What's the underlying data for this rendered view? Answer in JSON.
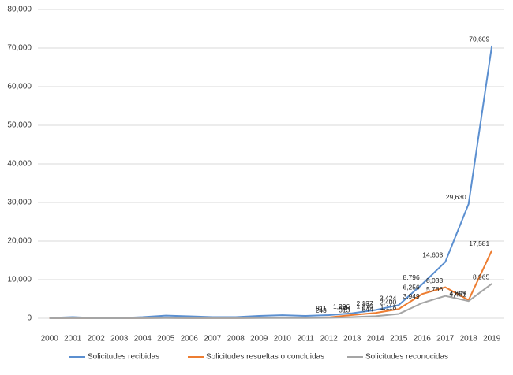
{
  "chart_data": {
    "type": "line",
    "categories": [
      "2000",
      "2001",
      "2002",
      "2003",
      "2004",
      "2005",
      "2006",
      "2007",
      "2008",
      "2009",
      "2010",
      "2011",
      "2012",
      "2013",
      "2014",
      "2015",
      "2016",
      "2017",
      "2018",
      "2019"
    ],
    "ylim": [
      0,
      80000
    ],
    "yticks": [
      {
        "value": 0,
        "label": "0"
      },
      {
        "value": 10000,
        "label": "10,000"
      },
      {
        "value": 20000,
        "label": "20,000"
      },
      {
        "value": 30000,
        "label": "30,000"
      },
      {
        "value": 40000,
        "label": "40,000"
      },
      {
        "value": 50000,
        "label": "50,000"
      },
      {
        "value": 60000,
        "label": "60,000"
      },
      {
        "value": 70000,
        "label": "70,000"
      },
      {
        "value": 80000,
        "label": "80,000"
      }
    ],
    "grid": true,
    "series": [
      {
        "name": "Solicitudes recibidas",
        "color": "#5b8fd0",
        "values": [
          100,
          300,
          50,
          50,
          300,
          700,
          500,
          300,
          300,
          600,
          800,
          600,
          811,
          1296,
          2137,
          3424,
          8796,
          14603,
          29630,
          70609
        ],
        "value_labels": [
          null,
          null,
          null,
          null,
          null,
          null,
          null,
          null,
          null,
          null,
          null,
          null,
          "811",
          "1,296",
          "2,137",
          "3,424",
          "8,796",
          "14,603",
          "29,630",
          "70,609"
        ]
      },
      {
        "name": "Solicitudes resueltas o concluidas",
        "color": "#ed7d31",
        "values": [
          0,
          50,
          0,
          0,
          50,
          100,
          50,
          50,
          50,
          100,
          100,
          100,
          243,
          846,
          1370,
          2400,
          6256,
          8033,
          4699,
          17581
        ],
        "value_labels": [
          null,
          null,
          null,
          null,
          null,
          null,
          null,
          null,
          null,
          null,
          null,
          null,
          "243",
          "846",
          "1,370",
          "2,400",
          "6,256",
          "8,033",
          "4,699",
          "17,581"
        ]
      },
      {
        "name": "Solicitudes reconocidas",
        "color": "#a5a5a5",
        "values": [
          0,
          30,
          0,
          0,
          30,
          50,
          30,
          30,
          30,
          50,
          50,
          50,
          100,
          313,
          544,
          1118,
          3949,
          5786,
          4451,
          8965
        ],
        "value_labels": [
          null,
          null,
          null,
          null,
          null,
          null,
          null,
          null,
          null,
          null,
          null,
          null,
          null,
          "313",
          "544",
          "1,118",
          "3,949",
          "5,786",
          "4,451",
          "8,965"
        ]
      }
    ]
  }
}
